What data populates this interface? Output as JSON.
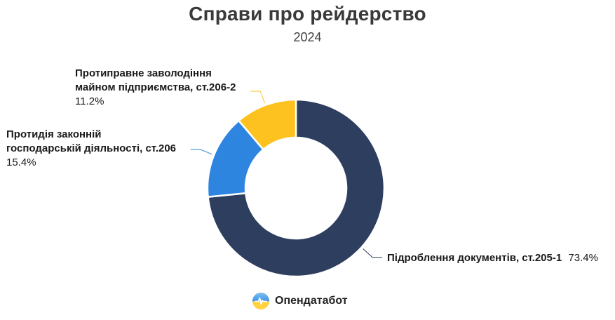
{
  "title": "Справи про рейдерство",
  "subtitle": "2024",
  "chart_data": {
    "type": "pie",
    "subtype": "donut",
    "title": "Справи про рейдерство",
    "subtitle": "2024",
    "unit": "%",
    "legend": "none",
    "labels_shown": true,
    "slices": [
      {
        "name": "Підроблення документів, ст.205-1",
        "value": 73.4,
        "color": "#2d3e5e"
      },
      {
        "name": "Протидія законній господарській діяльності, ст.206",
        "value": 15.4,
        "color": "#2e85e0"
      },
      {
        "name": "Протиправне заволодіння майном підприємства, ст.206-2",
        "value": 11.2,
        "color": "#fdc21f"
      }
    ]
  },
  "labels": {
    "navy": {
      "name": "Підроблення документів, ст.205-1",
      "pct": "73.4%"
    },
    "blue": {
      "line1": "Протидія законній",
      "line2": "господарській діяльності, ст.206",
      "pct": "15.4%"
    },
    "yellow": {
      "line1": "Протиправне заволодіння",
      "line2": "майном підприємства, ст.206-2",
      "pct": "11.2%"
    }
  },
  "footer": {
    "brand": "Опендатабот"
  },
  "colors": {
    "navy": "#2d3e5e",
    "blue": "#2e85e0",
    "yellow": "#fdc21f",
    "title_text": "#3a3a3a"
  }
}
